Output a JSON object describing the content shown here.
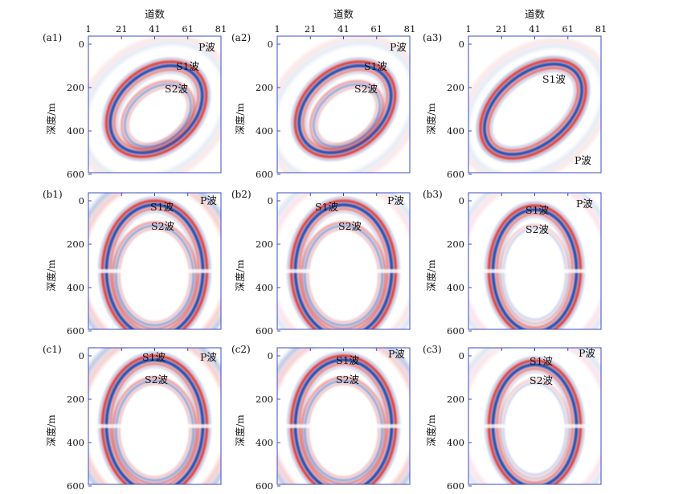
{
  "figure": {
    "column_header": "道数",
    "y_label": "深度/m",
    "x_ticks": [
      "1",
      "21",
      "41",
      "61",
      "81"
    ],
    "y_ticks": [
      "0",
      "200",
      "400",
      "600"
    ],
    "colors": {
      "positive": "#d62728",
      "negative": "#1f3fa6",
      "axis": "#3b4cc0"
    },
    "panels": [
      {
        "id": "(a1)",
        "labels": [
          "P波",
          "S1波",
          "S2波"
        ]
      },
      {
        "id": "(a2)",
        "labels": [
          "P波",
          "S1波",
          "S2波"
        ]
      },
      {
        "id": "(a3)",
        "labels": [
          "S1波",
          "P波"
        ]
      },
      {
        "id": "(b1)",
        "labels": [
          "P波",
          "S1波",
          "S2波"
        ]
      },
      {
        "id": "(b2)",
        "labels": [
          "P波",
          "S1波",
          "S2波"
        ]
      },
      {
        "id": "(b3)",
        "labels": [
          "S1波",
          "P波",
          "S2波"
        ]
      },
      {
        "id": "(c1)",
        "labels": [
          "S1波",
          "P波",
          "S2波"
        ]
      },
      {
        "id": "(c2)",
        "labels": [
          "S1波",
          "P波",
          "S2波"
        ]
      },
      {
        "id": "(c3)",
        "labels": [
          "S1波",
          "P波",
          "S2波"
        ]
      }
    ]
  }
}
